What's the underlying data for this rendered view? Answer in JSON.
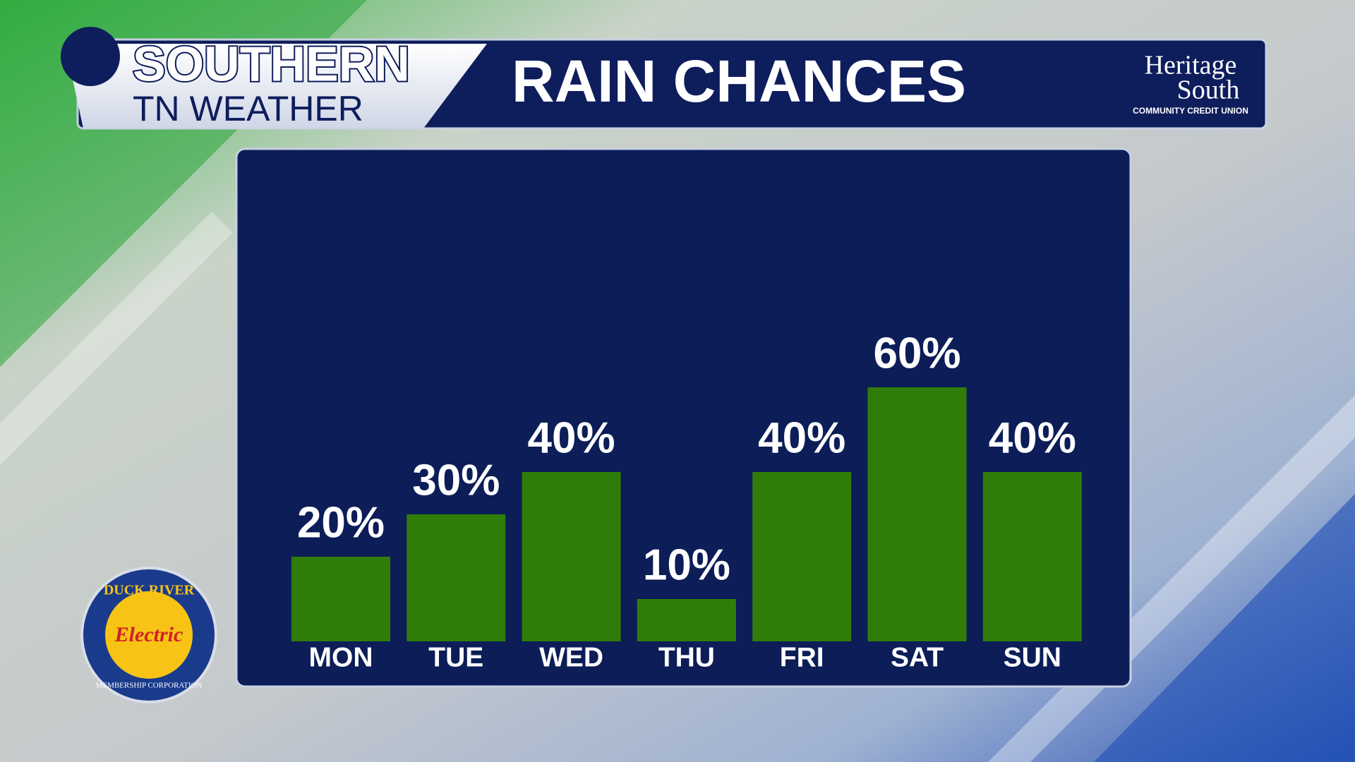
{
  "header": {
    "brand_top": "SOUTHERN",
    "brand_bottom": "TN WEATHER"
  },
  "sponsors": {
    "heritage_line1": "Heritage",
    "heritage_line2": "South",
    "heritage_tagline": "COMMUNITY CREDIT UNION",
    "duck_top": "DUCK RIVER",
    "duck_middle": "Electric",
    "duck_bottom": "MEMBERSHIP CORPORATION"
  },
  "chart_data": {
    "type": "bar",
    "title": "RAIN CHANCES",
    "categories": [
      "MON",
      "TUE",
      "WED",
      "THU",
      "FRI",
      "SAT",
      "SUN"
    ],
    "values": [
      20,
      30,
      40,
      10,
      40,
      60,
      40
    ],
    "value_labels": [
      "20%",
      "30%",
      "40%",
      "10%",
      "40%",
      "60%",
      "40%"
    ],
    "color": "#2f7d08"
  }
}
